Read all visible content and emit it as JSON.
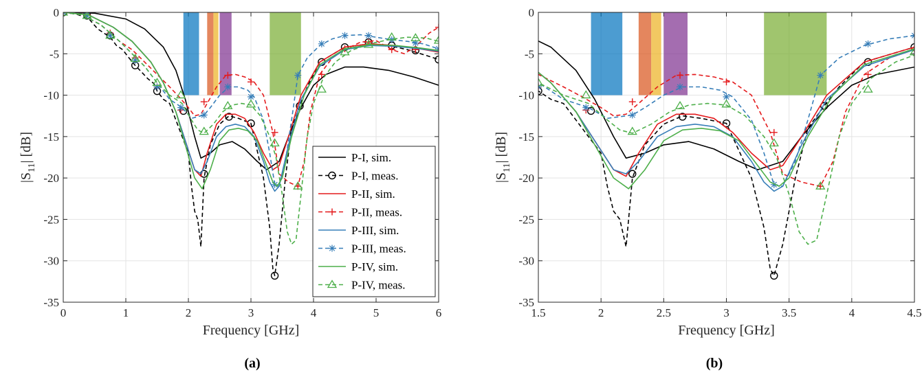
{
  "chart_data": [
    {
      "type": "line",
      "panel_label": "a",
      "xlabel": "Frequency [GHz]",
      "ylabel_main": "|S",
      "ylabel_sub": "11",
      "ylabel_end": "| [dB]",
      "xlim": [
        0,
        6
      ],
      "ylim": [
        -35,
        0
      ],
      "xticks": [
        "0",
        "1",
        "2",
        "3",
        "4",
        "5",
        "6"
      ],
      "yticks": [
        "0",
        "-5",
        "-10",
        "-15",
        "-20",
        "-25",
        "-30",
        "-35"
      ],
      "grid": true,
      "legend": "bottom-right",
      "bands": [
        {
          "x0": 1.92,
          "x1": 2.17,
          "y0": 0,
          "y1": -10,
          "color": "#0072bd"
        },
        {
          "x0": 2.3,
          "x1": 2.4,
          "y0": 0,
          "y1": -10,
          "color": "#d95319"
        },
        {
          "x0": 2.4,
          "x1": 2.48,
          "y0": 0,
          "y1": -10,
          "color": "#edb120"
        },
        {
          "x0": 2.5,
          "x1": 2.69,
          "y0": 0,
          "y1": -10,
          "color": "#7e2f8e"
        },
        {
          "x0": 3.3,
          "x1": 3.8,
          "y0": 0,
          "y1": -10,
          "color": "#77ac30"
        }
      ],
      "series": [
        {
          "name": "P-I, sim.",
          "color": "#000000",
          "dash": "solid",
          "marker": "none",
          "x": [
            0,
            0.5,
            1,
            1.3,
            1.6,
            1.8,
            1.95,
            2.1,
            2.2,
            2.35,
            2.5,
            2.7,
            2.9,
            3.1,
            3.25,
            3.45,
            3.6,
            3.8,
            4,
            4.2,
            4.5,
            4.8,
            5.2,
            5.6,
            6
          ],
          "y": [
            0,
            -0.1,
            -0.8,
            -2,
            -4.2,
            -7,
            -10.5,
            -15,
            -17.6,
            -17,
            -16,
            -15.6,
            -16.5,
            -18,
            -19,
            -18,
            -15,
            -11.5,
            -8.8,
            -7.5,
            -6.6,
            -6.6,
            -7,
            -7.8,
            -8.8
          ]
        },
        {
          "name": "P-I, meas.",
          "color": "#000000",
          "dash": "dashed",
          "marker": "circle",
          "x": [
            0,
            0.2,
            0.4,
            0.55,
            0.75,
            0.85,
            0.95,
            1.05,
            1.15,
            1.25,
            1.35,
            1.45,
            1.5,
            1.6,
            1.7,
            1.8,
            1.9,
            2.0,
            2.05,
            2.1,
            2.15,
            2.2,
            2.25,
            2.35,
            2.5,
            2.65,
            2.8,
            3.0,
            3.2,
            3.3,
            3.35,
            3.38,
            3.45,
            3.55,
            3.65,
            3.78,
            3.9,
            4.1,
            4.5,
            4.9,
            5.2,
            5.5,
            5.8,
            6
          ],
          "y": [
            0,
            -0.2,
            -0.7,
            -2,
            -3,
            -4,
            -4.5,
            -5.5,
            -6.4,
            -7.2,
            -8,
            -8.6,
            -9.5,
            -10.5,
            -11,
            -13,
            -15,
            -17,
            -21,
            -24,
            -25,
            -28.3,
            -20,
            -16,
            -13.5,
            -12.5,
            -12.8,
            -13.4,
            -20,
            -26,
            -31,
            -31.8,
            -28,
            -20,
            -14,
            -11.3,
            -9,
            -6,
            -4.2,
            -3.8,
            -4,
            -4.5,
            -5.2,
            -5.7
          ],
          "marker_x": [
            0,
            0.38,
            0.75,
            1.15,
            1.5,
            1.92,
            2.25,
            2.65,
            3.0,
            3.38,
            3.78,
            4.13,
            4.5,
            4.88,
            5.25,
            5.63,
            6
          ],
          "marker_y": [
            0,
            -0.4,
            -2.8,
            -6.4,
            -9.5,
            -11.9,
            -19.5,
            -12.6,
            -13.4,
            -31.8,
            -11.3,
            -6,
            -4.2,
            -3.6,
            -4,
            -4.6,
            -5.7
          ]
        },
        {
          "name": "P-II, sim.",
          "color": "#e41a1c",
          "dash": "solid",
          "marker": "none",
          "x": [
            0,
            0.4,
            0.8,
            1.1,
            1.4,
            1.6,
            1.8,
            1.95,
            2.1,
            2.2,
            2.3,
            2.45,
            2.6,
            2.75,
            2.9,
            3.05,
            3.2,
            3.35,
            3.45,
            3.6,
            3.8,
            4.1,
            4.5,
            4.9,
            5.3,
            5.7,
            6
          ],
          "y": [
            0,
            -0.3,
            -1.8,
            -3.5,
            -6,
            -8.5,
            -12,
            -15.5,
            -19,
            -19.8,
            -17,
            -13.5,
            -12.3,
            -12.3,
            -12.8,
            -14.5,
            -17,
            -19,
            -18.5,
            -15,
            -10,
            -6,
            -4.2,
            -3.8,
            -4,
            -4.4,
            -4.8
          ]
        },
        {
          "name": "P-II, meas.",
          "color": "#e41a1c",
          "dash": "dashed",
          "marker": "plus",
          "x": [
            0,
            0.3,
            0.6,
            0.9,
            1.1,
            1.3,
            1.5,
            1.7,
            1.85,
            2.0,
            2.1,
            2.2,
            2.3,
            2.45,
            2.6,
            2.75,
            2.9,
            3.05,
            3.2,
            3.35,
            3.45,
            3.6,
            3.75,
            3.85,
            3.95,
            4.1,
            4.3,
            4.5,
            4.75,
            5.0,
            5.25,
            5.45,
            5.65,
            5.85,
            6
          ],
          "y": [
            0,
            -0.3,
            -1.5,
            -3.5,
            -4.5,
            -6,
            -7.5,
            -9,
            -10.2,
            -11.5,
            -12.5,
            -12.3,
            -11,
            -9,
            -7.6,
            -7.5,
            -7.8,
            -8.4,
            -10,
            -14.5,
            -19.5,
            -20.5,
            -21,
            -18,
            -12,
            -7.5,
            -5.5,
            -4.5,
            -3.6,
            -3.4,
            -4.5,
            -5,
            -4,
            -2.5,
            -1.8
          ],
          "marker_x": [
            0,
            0.38,
            0.75,
            1.15,
            1.5,
            1.88,
            2.25,
            2.63,
            3.0,
            3.38,
            3.75,
            4.13,
            4.5,
            4.88,
            5.25,
            5.63,
            6
          ],
          "marker_y": [
            0,
            -0.3,
            -2.5,
            -5.5,
            -9,
            -11.8,
            -10.8,
            -7.6,
            -8.4,
            -14.5,
            -21,
            -7.5,
            -4.4,
            -3.6,
            -4.5,
            -4.5,
            -1.8
          ]
        },
        {
          "name": "P-III, sim.",
          "color": "#377eb8",
          "dash": "solid",
          "marker": "none",
          "x": [
            0,
            0.4,
            0.8,
            1.1,
            1.4,
            1.6,
            1.8,
            1.95,
            2.1,
            2.2,
            2.3,
            2.45,
            2.6,
            2.75,
            2.9,
            3.05,
            3.2,
            3.3,
            3.38,
            3.45,
            3.6,
            3.8,
            4.1,
            4.5,
            4.9,
            5.3,
            5.7,
            6
          ],
          "y": [
            0,
            -0.3,
            -1.8,
            -3.5,
            -6,
            -8.5,
            -12,
            -15.5,
            -19,
            -19.5,
            -18,
            -15,
            -13.8,
            -13.5,
            -13.8,
            -15,
            -18,
            -20.5,
            -21.6,
            -21,
            -16,
            -10.5,
            -6.5,
            -4.5,
            -4,
            -4.1,
            -4.4,
            -4.7
          ]
        },
        {
          "name": "P-III, meas.",
          "color": "#377eb8",
          "dash": "dashed",
          "marker": "asterisk",
          "x": [
            0,
            0.3,
            0.6,
            0.9,
            1.1,
            1.3,
            1.5,
            1.7,
            1.9,
            2.05,
            2.15,
            2.25,
            2.35,
            2.5,
            2.65,
            2.8,
            2.95,
            3.05,
            3.2,
            3.3,
            3.38,
            3.45,
            3.55,
            3.65,
            3.75,
            3.9,
            4.1,
            4.3,
            4.5,
            4.75,
            5.0,
            5.25,
            5.5,
            5.75,
            6
          ],
          "y": [
            0,
            -0.3,
            -1.5,
            -3.5,
            -5,
            -6.5,
            -8.5,
            -10.5,
            -11.5,
            -12.8,
            -12.6,
            -12.4,
            -11.5,
            -10,
            -9,
            -9,
            -9.4,
            -10.2,
            -13,
            -17,
            -20.8,
            -21,
            -18,
            -13,
            -7.6,
            -5.5,
            -4,
            -3.2,
            -2.8,
            -2.7,
            -3,
            -3.3,
            -3.5,
            -3.8,
            -4.4
          ],
          "marker_x": [
            0,
            0.38,
            0.75,
            1.15,
            1.5,
            1.88,
            2.25,
            2.63,
            3.0,
            3.38,
            3.75,
            4.13,
            4.5,
            4.88,
            5.25,
            5.63,
            6
          ],
          "marker_y": [
            0,
            -0.4,
            -2.8,
            -5.8,
            -9,
            -11.5,
            -12.4,
            -9,
            -10.2,
            -20.8,
            -7.6,
            -3.8,
            -2.8,
            -2.8,
            -3.3,
            -3.7,
            -4.4
          ]
        },
        {
          "name": "P-IV, sim.",
          "color": "#4daf4a",
          "dash": "solid",
          "marker": "none",
          "x": [
            0,
            0.4,
            0.8,
            1.1,
            1.4,
            1.6,
            1.8,
            1.95,
            2.1,
            2.22,
            2.35,
            2.5,
            2.65,
            2.8,
            2.95,
            3.1,
            3.25,
            3.35,
            3.42,
            3.5,
            3.65,
            3.85,
            4.1,
            4.5,
            4.9,
            5.3,
            5.7,
            6
          ],
          "y": [
            0,
            -0.3,
            -1.8,
            -3.5,
            -6,
            -8.5,
            -12,
            -16,
            -20,
            -21.3,
            -19,
            -15.5,
            -14.2,
            -14,
            -14.3,
            -15.5,
            -18.5,
            -20.5,
            -21,
            -20,
            -15,
            -10,
            -6.3,
            -4.4,
            -3.9,
            -4,
            -4.3,
            -4.6
          ]
        },
        {
          "name": "P-IV, meas.",
          "color": "#4daf4a",
          "dash": "dashed",
          "marker": "triangle",
          "x": [
            0,
            0.3,
            0.6,
            0.9,
            1.1,
            1.3,
            1.5,
            1.7,
            1.9,
            2.05,
            2.15,
            2.25,
            2.4,
            2.55,
            2.7,
            2.85,
            3.0,
            3.15,
            3.3,
            3.4,
            3.5,
            3.58,
            3.65,
            3.72,
            3.8,
            3.9,
            4.0,
            4.15,
            4.35,
            4.6,
            4.9,
            5.2,
            5.5,
            5.8,
            6
          ],
          "y": [
            0,
            -0.3,
            -1.5,
            -3.5,
            -5,
            -6.5,
            -8.5,
            -10,
            -11,
            -13,
            -14.2,
            -14.6,
            -13.5,
            -12,
            -11.2,
            -11,
            -11.2,
            -12.5,
            -15,
            -17.5,
            -22,
            -26.5,
            -28,
            -27.5,
            -22,
            -15,
            -11,
            -8,
            -6,
            -4.6,
            -3.8,
            -3.3,
            -3,
            -3.1,
            -3.5
          ],
          "marker_x": [
            0,
            0.38,
            0.75,
            1.15,
            1.5,
            1.88,
            2.25,
            2.63,
            3.0,
            3.38,
            3.75,
            4.13,
            4.5,
            4.88,
            5.25,
            5.63,
            6
          ],
          "marker_y": [
            0,
            -0.4,
            -2.8,
            -5.6,
            -8.5,
            -10,
            -14.4,
            -11.3,
            -11.1,
            -15.8,
            -21,
            -9.3,
            -4.8,
            -3.9,
            -3.0,
            -3.1,
            -3.4
          ]
        }
      ],
      "legend_entries": [
        "P-I, sim.",
        "P-I, meas.",
        "P-II, sim.",
        "P-II, meas.",
        "P-III, sim.",
        "P-III, meas.",
        "P-IV, sim.",
        "P-IV, meas."
      ]
    },
    {
      "type": "line",
      "panel_label": "b",
      "xlabel": "Frequency [GHz]",
      "ylabel_main": "|S",
      "ylabel_sub": "11",
      "ylabel_end": "| [dB]",
      "xlim": [
        1.5,
        4.5
      ],
      "ylim": [
        -35,
        0
      ],
      "xticks": [
        "1.5",
        "2",
        "2.5",
        "3",
        "3.5",
        "4",
        "4.5"
      ],
      "yticks": [
        "0",
        "-5",
        "-10",
        "-15",
        "-20",
        "-25",
        "-30",
        "-35"
      ],
      "grid": true,
      "legend": "none",
      "bands": [
        {
          "x0": 1.92,
          "x1": 2.17,
          "y0": 0,
          "y1": -10,
          "color": "#0072bd"
        },
        {
          "x0": 2.3,
          "x1": 2.4,
          "y0": 0,
          "y1": -10,
          "color": "#d95319"
        },
        {
          "x0": 2.4,
          "x1": 2.48,
          "y0": 0,
          "y1": -10,
          "color": "#edb120"
        },
        {
          "x0": 2.5,
          "x1": 2.69,
          "y0": 0,
          "y1": -10,
          "color": "#7e2f8e"
        },
        {
          "x0": 3.3,
          "x1": 3.8,
          "y0": 0,
          "y1": -10,
          "color": "#77ac30"
        }
      ]
    }
  ],
  "captions": {
    "a": "(a)",
    "b": "(b)"
  }
}
